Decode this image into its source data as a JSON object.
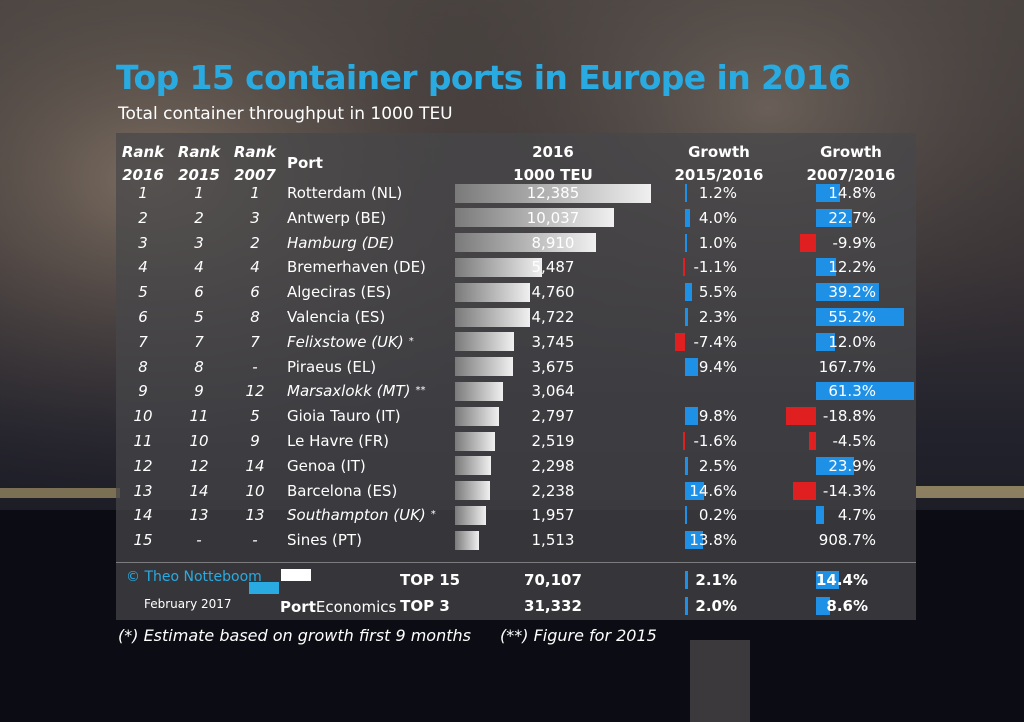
{
  "title": "Top 15 container ports in Europe in 2016",
  "subtitle": "Total container throughput in 1000 TEU",
  "headers": {
    "rank2016": [
      "Rank",
      "2016"
    ],
    "rank2015": [
      "Rank",
      "2015"
    ],
    "rank2007": [
      "Rank",
      "2007"
    ],
    "port": "Port",
    "teu": [
      "2016",
      "1000 TEU"
    ],
    "growth1": [
      "Growth",
      "2015/2016"
    ],
    "growth2": [
      "Growth",
      "2007/2016"
    ]
  },
  "colors": {
    "title": "#29abe2",
    "positive_growth": "#1e90e6",
    "negative_growth": "#e02020",
    "value_bar": "#e6e6e6",
    "panel": "#46464a"
  },
  "chart_data": {
    "type": "table",
    "columns": [
      "Rank 2016",
      "Rank 2015",
      "Rank 2007",
      "Port",
      "2016 1000 TEU",
      "Growth 2015/2016",
      "Growth 2007/2016"
    ],
    "rows": [
      {
        "rank2016": "1",
        "rank2015": "1",
        "rank2007": "1",
        "port": "Rotterdam (NL)",
        "italic": false,
        "teu": 12385,
        "teu_label": "12,385",
        "g1516": 1.2,
        "g1516_label": "1.2%",
        "g0716": 14.8,
        "g0716_label": "14.8%"
      },
      {
        "rank2016": "2",
        "rank2015": "2",
        "rank2007": "3",
        "port": "Antwerp (BE)",
        "italic": false,
        "teu": 10037,
        "teu_label": "10,037",
        "g1516": 4.0,
        "g1516_label": "4.0%",
        "g0716": 22.7,
        "g0716_label": "22.7%"
      },
      {
        "rank2016": "3",
        "rank2015": "3",
        "rank2007": "2",
        "port": "Hamburg (DE)",
        "italic": true,
        "teu": 8910,
        "teu_label": "8,910",
        "g1516": 1.0,
        "g1516_label": "1.0%",
        "g0716": -9.9,
        "g0716_label": "-9.9%"
      },
      {
        "rank2016": "4",
        "rank2015": "4",
        "rank2007": "4",
        "port": "Bremerhaven (DE)",
        "italic": false,
        "teu": 5487,
        "teu_label": "5,487",
        "g1516": -1.1,
        "g1516_label": "-1.1%",
        "g0716": 12.2,
        "g0716_label": "12.2%"
      },
      {
        "rank2016": "5",
        "rank2015": "6",
        "rank2007": "6",
        "port": "Algeciras (ES)",
        "italic": false,
        "teu": 4760,
        "teu_label": "4,760",
        "g1516": 5.5,
        "g1516_label": "5.5%",
        "g0716": 39.2,
        "g0716_label": "39.2%"
      },
      {
        "rank2016": "6",
        "rank2015": "5",
        "rank2007": "8",
        "port": "Valencia (ES)",
        "italic": false,
        "teu": 4722,
        "teu_label": "4,722",
        "g1516": 2.3,
        "g1516_label": "2.3%",
        "g0716": 55.2,
        "g0716_label": "55.2%"
      },
      {
        "rank2016": "7",
        "rank2015": "7",
        "rank2007": "7",
        "port": "Felixstowe (UK)",
        "marker": "*",
        "italic": true,
        "teu": 3745,
        "teu_label": "3,745",
        "g1516": -7.4,
        "g1516_label": "-7.4%",
        "g0716": 12.0,
        "g0716_label": "12.0%"
      },
      {
        "rank2016": "8",
        "rank2015": "8",
        "rank2007": "-",
        "port": "Piraeus (EL)",
        "italic": false,
        "teu": 3675,
        "teu_label": "3,675",
        "g1516": 9.4,
        "g1516_label": "9.4%",
        "g0716": 167.7,
        "g0716_label": "167.7%",
        "g0716_nobar": true
      },
      {
        "rank2016": "9",
        "rank2015": "9",
        "rank2007": "12",
        "port": "Marsaxlokk (MT)",
        "marker": "**",
        "italic": true,
        "teu": 3064,
        "teu_label": "3,064",
        "g1516": null,
        "g1516_label": "",
        "g0716": 61.3,
        "g0716_label": "61.3%"
      },
      {
        "rank2016": "10",
        "rank2015": "11",
        "rank2007": "5",
        "port": "Gioia Tauro (IT)",
        "italic": false,
        "teu": 2797,
        "teu_label": "2,797",
        "g1516": 9.8,
        "g1516_label": "9.8%",
        "g0716": -18.8,
        "g0716_label": "-18.8%"
      },
      {
        "rank2016": "11",
        "rank2015": "10",
        "rank2007": "9",
        "port": "Le Havre (FR)",
        "italic": false,
        "teu": 2519,
        "teu_label": "2,519",
        "g1516": -1.6,
        "g1516_label": "-1.6%",
        "g0716": -4.5,
        "g0716_label": "-4.5%"
      },
      {
        "rank2016": "12",
        "rank2015": "12",
        "rank2007": "14",
        "port": "Genoa (IT)",
        "italic": false,
        "teu": 2298,
        "teu_label": "2,298",
        "g1516": 2.5,
        "g1516_label": "2.5%",
        "g0716": 23.9,
        "g0716_label": "23.9%"
      },
      {
        "rank2016": "13",
        "rank2015": "14",
        "rank2007": "10",
        "port": "Barcelona (ES)",
        "italic": false,
        "teu": 2238,
        "teu_label": "2,238",
        "g1516": 14.6,
        "g1516_label": "14.6%",
        "g0716": -14.3,
        "g0716_label": "-14.3%"
      },
      {
        "rank2016": "14",
        "rank2015": "13",
        "rank2007": "13",
        "port": "Southampton (UK)",
        "marker": "*",
        "italic": true,
        "teu": 1957,
        "teu_label": "1,957",
        "g1516": 0.2,
        "g1516_label": "0.2%",
        "g0716": 4.7,
        "g0716_label": "4.7%"
      },
      {
        "rank2016": "15",
        "rank2015": "-",
        "rank2007": "-",
        "port": "Sines (PT)",
        "italic": false,
        "teu": 1513,
        "teu_label": "1,513",
        "g1516": 13.8,
        "g1516_label": "13.8%",
        "g0716": 908.7,
        "g0716_label": "908.7%",
        "g0716_nobar": true
      }
    ],
    "teu_max": 12385,
    "g1516_scale_max": 15,
    "g0716_scale_max": 61.3,
    "totals": [
      {
        "label": "TOP 15",
        "teu_label": "70,107",
        "g1516": 2.1,
        "g1516_label": "2.1%",
        "g0716": 14.4,
        "g0716_label": "14.4%"
      },
      {
        "label": "TOP 3",
        "teu_label": "31,332",
        "g1516": 2.0,
        "g1516_label": "2.0%",
        "g0716": 8.6,
        "g0716_label": "8.6%"
      }
    ]
  },
  "footer": {
    "copyright": "© Theo Notteboom",
    "date": "February 2017",
    "brand_bold": "Port",
    "brand_rest": "Economics"
  },
  "notes": {
    "note1": "(*) Estimate based on growth first 9 months",
    "note2": "(**) Figure for 2015"
  }
}
